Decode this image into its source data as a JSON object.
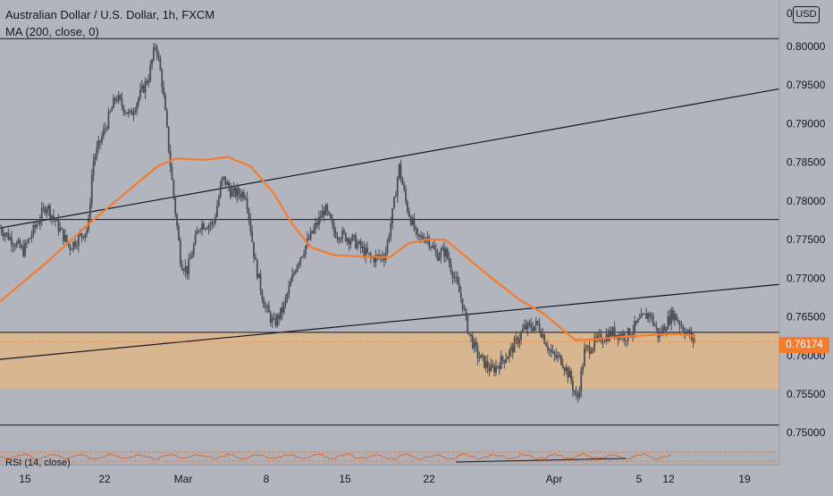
{
  "header": {
    "symbol_line": "Australian Dollar / U.S. Dollar, 1h, FXCM",
    "indicator_line": "MA (200, close, 0)",
    "currency_badge": "USD",
    "currency_prefix": "0",
    "rsi_label": "RSI (14, close)"
  },
  "colors": {
    "background": "#b2b5be",
    "candles": "#4a4d55",
    "ma": "#f57c2c",
    "zone": "#d7b690",
    "price_badge": "#f57c2c",
    "lines": "#131722"
  },
  "chart_data": {
    "type": "candlestick",
    "title": "Australian Dollar / U.S. Dollar, 1h, FXCM",
    "x_ticks": [
      "15",
      "22",
      "Mar",
      "8",
      "15",
      "22",
      "Apr",
      "5",
      "12",
      "19"
    ],
    "y_ticks": [
      "0.80000",
      "0.79500",
      "0.79000",
      "0.78500",
      "0.78000",
      "0.77500",
      "0.77000",
      "0.76500",
      "0.76000",
      "0.75500",
      "0.75000"
    ],
    "ylim": [
      0.7476,
      0.8045
    ],
    "last_price": "0.76174",
    "price_path": [
      [
        0,
        0.7765
      ],
      [
        2.5,
        0.7735
      ],
      [
        5,
        0.7795
      ],
      [
        7.5,
        0.774
      ],
      [
        9.5,
        0.7765
      ],
      [
        10,
        0.785
      ],
      [
        11.5,
        0.79
      ],
      [
        12.5,
        0.7935
      ],
      [
        14,
        0.791
      ],
      [
        16,
        0.796
      ],
      [
        16.8,
        0.8005
      ],
      [
        17.5,
        0.795
      ],
      [
        18.5,
        0.783
      ],
      [
        19.5,
        0.772
      ],
      [
        20.2,
        0.771
      ],
      [
        21.5,
        0.777
      ],
      [
        23,
        0.777
      ],
      [
        24,
        0.783
      ],
      [
        25,
        0.781
      ],
      [
        26.5,
        0.781
      ],
      [
        27.5,
        0.772
      ],
      [
        28.5,
        0.7665
      ],
      [
        29.5,
        0.764
      ],
      [
        30.5,
        0.766
      ],
      [
        32,
        0.772
      ],
      [
        33.5,
        0.7755
      ],
      [
        35,
        0.779
      ],
      [
        36,
        0.776
      ],
      [
        38,
        0.775
      ],
      [
        40,
        0.7725
      ],
      [
        41.5,
        0.773
      ],
      [
        42.4,
        0.779
      ],
      [
        43,
        0.7845
      ],
      [
        43.8,
        0.7795
      ],
      [
        45,
        0.775
      ],
      [
        46,
        0.7755
      ],
      [
        47,
        0.773
      ],
      [
        48,
        0.7735
      ],
      [
        49,
        0.77
      ],
      [
        49.8,
        0.767
      ],
      [
        50.5,
        0.763
      ],
      [
        51.5,
        0.76
      ],
      [
        53,
        0.758
      ],
      [
        55,
        0.7605
      ],
      [
        56.5,
        0.7635
      ],
      [
        58,
        0.764
      ],
      [
        59.5,
        0.76
      ],
      [
        60.5,
        0.7595
      ],
      [
        61.5,
        0.757
      ],
      [
        62.2,
        0.754
      ],
      [
        63,
        0.7605
      ],
      [
        64.5,
        0.762
      ],
      [
        66,
        0.763
      ],
      [
        67.5,
        0.7625
      ],
      [
        69,
        0.7645
      ],
      [
        70,
        0.7655
      ],
      [
        71,
        0.7625
      ],
      [
        72.5,
        0.7655
      ],
      [
        74,
        0.763
      ],
      [
        75,
        0.7617
      ]
    ],
    "moving_average_200": [
      [
        0,
        0.767
      ],
      [
        5,
        0.772
      ],
      [
        10,
        0.7775
      ],
      [
        14,
        0.7815
      ],
      [
        17,
        0.7845
      ],
      [
        19,
        0.7855
      ],
      [
        22,
        0.7853
      ],
      [
        24.5,
        0.7857
      ],
      [
        27,
        0.7845
      ],
      [
        29.5,
        0.781
      ],
      [
        31.5,
        0.777
      ],
      [
        33.5,
        0.774
      ],
      [
        36,
        0.773
      ],
      [
        39,
        0.7728
      ],
      [
        42,
        0.7727
      ],
      [
        44,
        0.7745
      ],
      [
        46,
        0.775
      ],
      [
        48,
        0.775
      ],
      [
        50,
        0.773
      ],
      [
        53,
        0.77
      ],
      [
        56,
        0.7672
      ],
      [
        58.5,
        0.7655
      ],
      [
        60.5,
        0.7635
      ],
      [
        62,
        0.762
      ],
      [
        63,
        0.762
      ],
      [
        65,
        0.7622
      ],
      [
        68,
        0.7625
      ],
      [
        71,
        0.7627
      ],
      [
        73,
        0.7628
      ],
      [
        75,
        0.7625
      ]
    ],
    "support_zone": [
      0.7557,
      0.763
    ],
    "horizontal_levels": [
      0.801,
      0.7776,
      0.751
    ],
    "trendlines": [
      [
        [
          0,
          0.7765
        ],
        [
          84,
          0.7945
        ]
      ],
      [
        [
          0,
          0.7595
        ],
        [
          84,
          0.7692
        ]
      ]
    ],
    "x_range": [
      0,
      84
    ]
  }
}
